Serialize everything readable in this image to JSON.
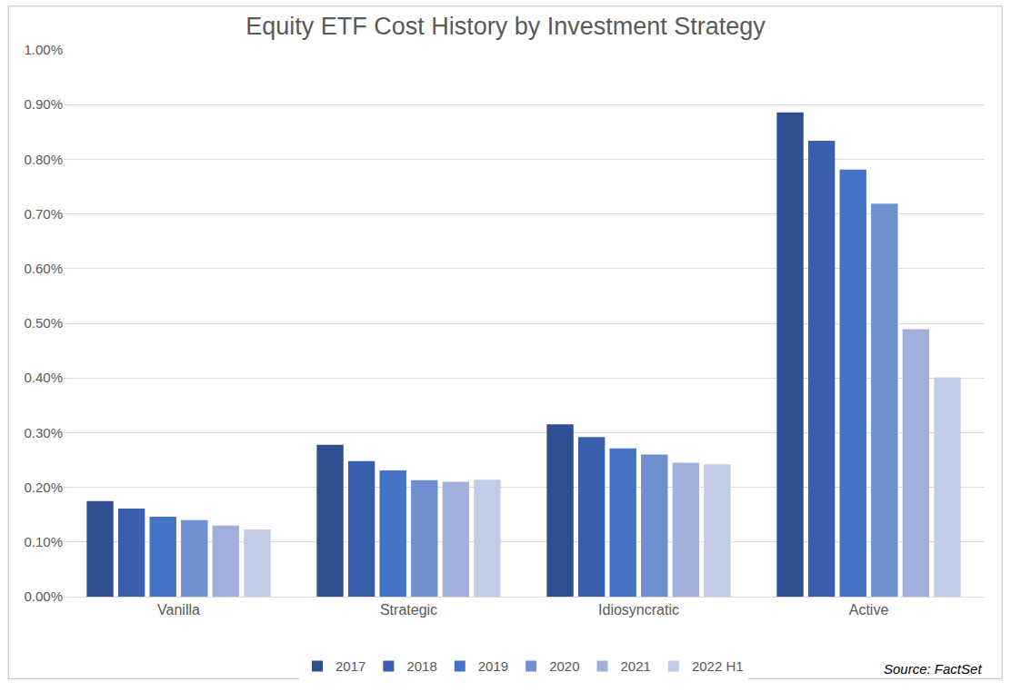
{
  "chart_data": {
    "type": "bar",
    "title": "Equity ETF Cost History by Investment Strategy",
    "categories": [
      "Vanilla",
      "Strategic",
      "Idiosyncratic",
      "Active"
    ],
    "series": [
      {
        "name": "2017",
        "color": "#2E5090",
        "values": [
          0.175,
          0.278,
          0.315,
          0.886
        ]
      },
      {
        "name": "2018",
        "color": "#3A5FAF",
        "values": [
          0.161,
          0.248,
          0.292,
          0.834
        ]
      },
      {
        "name": "2019",
        "color": "#4472C4",
        "values": [
          0.146,
          0.231,
          0.271,
          0.781
        ]
      },
      {
        "name": "2020",
        "color": "#6F8FD0",
        "values": [
          0.14,
          0.213,
          0.26,
          0.719
        ]
      },
      {
        "name": "2021",
        "color": "#A0B0DB",
        "values": [
          0.13,
          0.21,
          0.245,
          0.489
        ]
      },
      {
        "name": "2022 H1",
        "color": "#C3CCE6",
        "values": [
          0.123,
          0.214,
          0.242,
          0.401
        ]
      }
    ],
    "ylim": [
      0,
      1
    ],
    "yticks": [
      {
        "value": 0,
        "label": "0.00%"
      },
      {
        "value": 0.1,
        "label": "0.10%"
      },
      {
        "value": 0.2,
        "label": "0.20%"
      },
      {
        "value": 0.3,
        "label": "0.30%"
      },
      {
        "value": 0.4,
        "label": "0.40%"
      },
      {
        "value": 0.5,
        "label": "0.50%"
      },
      {
        "value": 0.6,
        "label": "0.60%"
      },
      {
        "value": 0.7,
        "label": "0.70%"
      },
      {
        "value": 0.8,
        "label": "0.80%"
      },
      {
        "value": 0.9,
        "label": "0.90%"
      },
      {
        "value": 1,
        "label": "1.00%"
      }
    ],
    "grid": true,
    "legend": "bottom",
    "annotations": [
      "Source: FactSet"
    ]
  }
}
